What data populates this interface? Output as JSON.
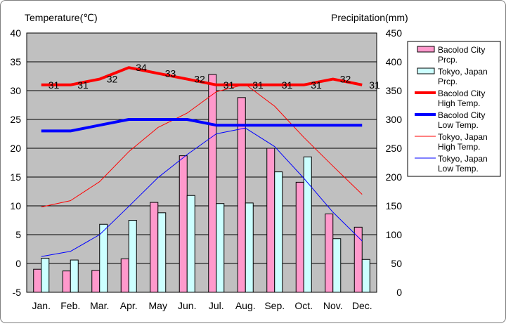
{
  "chart_data": {
    "type": "bar+line",
    "left_axis": {
      "label": "Temperature(℃)",
      "min": -5,
      "max": 40,
      "step": 5
    },
    "right_axis": {
      "label": "Precipitation(mm)",
      "min": 0,
      "max": 450,
      "step": 50
    },
    "categories": [
      "Jan.",
      "Feb.",
      "Mar.",
      "Apr.",
      "May",
      "Jun.",
      "Jul.",
      "Aug.",
      "Sep.",
      "Oct.",
      "Nov.",
      "Dec."
    ],
    "series": [
      {
        "name": "Bacolod City Prcp.",
        "type": "bar",
        "axis": "right",
        "color": "#ff99cc",
        "values": [
          40,
          37,
          38,
          58,
          156,
          237,
          378,
          338,
          250,
          191,
          136,
          113
        ]
      },
      {
        "name": "Tokyo, Japan Prcp.",
        "type": "bar",
        "axis": "right",
        "color": "#ccffff",
        "values": [
          59,
          56,
          118,
          125,
          138,
          168,
          154,
          155,
          209,
          235,
          93,
          57
        ]
      },
      {
        "name": "Bacolod City High Temp.",
        "type": "line",
        "axis": "left",
        "color": "#ff0000",
        "width": 4,
        "values": [
          31,
          31,
          32,
          34,
          33,
          32,
          31,
          31,
          31,
          31,
          32,
          31
        ],
        "labels": [
          "31",
          "31",
          "32",
          "34",
          "33",
          "32",
          "31",
          "31",
          "31",
          "31",
          "32",
          "31"
        ]
      },
      {
        "name": "Bacolod City Low Temp.",
        "type": "line",
        "axis": "left",
        "color": "#0000ff",
        "width": 4,
        "values": [
          23,
          23,
          24,
          25,
          25,
          25,
          24,
          24,
          24,
          24,
          24,
          24
        ]
      },
      {
        "name": "Tokyo, Japan High Temp.",
        "type": "line",
        "axis": "left",
        "color": "#ff0000",
        "width": 1,
        "values": [
          9.8,
          10.9,
          14.2,
          19.4,
          23.6,
          26.1,
          29.8,
          31.1,
          27.3,
          21.9,
          16.9,
          12.0
        ]
      },
      {
        "name": "Tokyo, Japan Low Temp.",
        "type": "line",
        "axis": "left",
        "color": "#0000ff",
        "width": 1,
        "values": [
          1.2,
          2.1,
          5.0,
          9.9,
          14.9,
          18.9,
          22.5,
          23.5,
          20.3,
          14.8,
          8.9,
          3.9
        ]
      }
    ],
    "legend": {
      "position": "right",
      "entries": [
        {
          "line1": "Bacolod City",
          "line2": "Prcp."
        },
        {
          "line1": "Tokyo, Japan",
          "line2": "Prcp."
        },
        {
          "line1": "Bacolod City",
          "line2": "High Temp."
        },
        {
          "line1": "Bacolod City",
          "line2": "Low Temp."
        },
        {
          "line1": "Tokyo, Japan",
          "line2": "High Temp."
        },
        {
          "line1": "Tokyo, Japan",
          "line2": "Low Temp."
        }
      ]
    },
    "plot_background": "#c0c0c0",
    "grid": true
  }
}
